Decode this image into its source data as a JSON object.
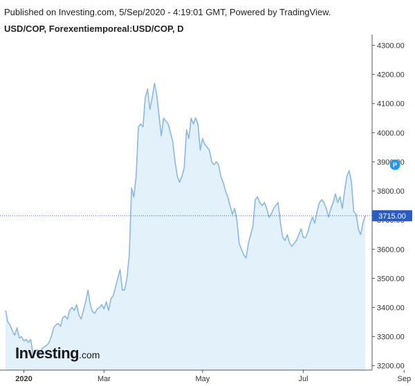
{
  "header": {
    "published": "Published on Investing.com, 5/Sep/2020 - 4:19:01 GMT, Powered by TradingView.",
    "symbol": "USD/COP, Forexentiemporeal:USD/COP, D"
  },
  "logo": {
    "main": "Investing",
    "suffix": ".com"
  },
  "colors": {
    "line": "#89b8e6",
    "fill": "#e2f1fa",
    "price_line": "#2a5cc4",
    "price_badge": "#2a5cc4",
    "marker": "#2196f3",
    "axis": "#555555",
    "text": "#333333"
  },
  "chart_data": {
    "type": "area",
    "title": "USD/COP, Forexentiemporeal:USD/COP, D",
    "xlabel": "",
    "ylabel": "",
    "ylim": [
      3185,
      4325
    ],
    "y_ticks": [
      3200,
      3300,
      3400,
      3500,
      3600,
      3700,
      3800,
      3900,
      4000,
      4100,
      4200,
      4300
    ],
    "y_tick_labels": [
      "3200.00",
      "3300.00",
      "3400.00",
      "3500.00",
      "3600.00",
      "3700.00",
      "3800.00",
      "3900.00",
      "4000.00",
      "4100.00",
      "4200.00",
      "4300.00"
    ],
    "x_ticks": [
      {
        "label": "2020",
        "index": 8,
        "bold": true
      },
      {
        "label": "Mar",
        "index": 43
      },
      {
        "label": "May",
        "index": 86
      },
      {
        "label": "Jul",
        "index": 130
      },
      {
        "label": "Sep",
        "index": 174
      }
    ],
    "last_price": 3715,
    "last_price_label": "3715.00",
    "marker": {
      "label": "P",
      "index": 170,
      "value": 3890
    },
    "grid": false,
    "values": [
      3390,
      3350,
      3340,
      3320,
      3305,
      3330,
      3295,
      3300,
      3285,
      3290,
      3280,
      3290,
      3240,
      3250,
      3255,
      3240,
      3260,
      3265,
      3270,
      3280,
      3300,
      3330,
      3340,
      3345,
      3335,
      3365,
      3370,
      3360,
      3390,
      3400,
      3390,
      3410,
      3375,
      3360,
      3390,
      3420,
      3460,
      3410,
      3385,
      3380,
      3395,
      3400,
      3410,
      3395,
      3420,
      3390,
      3430,
      3440,
      3470,
      3500,
      3530,
      3460,
      3460,
      3500,
      3580,
      3810,
      3780,
      3850,
      4020,
      4030,
      4020,
      4120,
      4150,
      4080,
      4120,
      4170,
      4130,
      4060,
      3990,
      4050,
      4040,
      4030,
      4000,
      3970,
      3900,
      3850,
      3830,
      3850,
      3880,
      4010,
      3980,
      4050,
      4030,
      4050,
      4030,
      3940,
      3980,
      3960,
      3950,
      3940,
      3900,
      3890,
      3900,
      3890,
      3850,
      3830,
      3800,
      3780,
      3750,
      3720,
      3740,
      3700,
      3620,
      3600,
      3580,
      3570,
      3620,
      3650,
      3680,
      3770,
      3780,
      3760,
      3750,
      3760,
      3740,
      3710,
      3720,
      3740,
      3750,
      3760,
      3690,
      3640,
      3630,
      3650,
      3620,
      3610,
      3620,
      3630,
      3650,
      3670,
      3640,
      3640,
      3660,
      3690,
      3710,
      3690,
      3730,
      3760,
      3770,
      3760,
      3740,
      3710,
      3740,
      3760,
      3790,
      3760,
      3780,
      3740,
      3800,
      3850,
      3870,
      3830,
      3730,
      3720,
      3670,
      3650,
      3690,
      3715
    ]
  }
}
